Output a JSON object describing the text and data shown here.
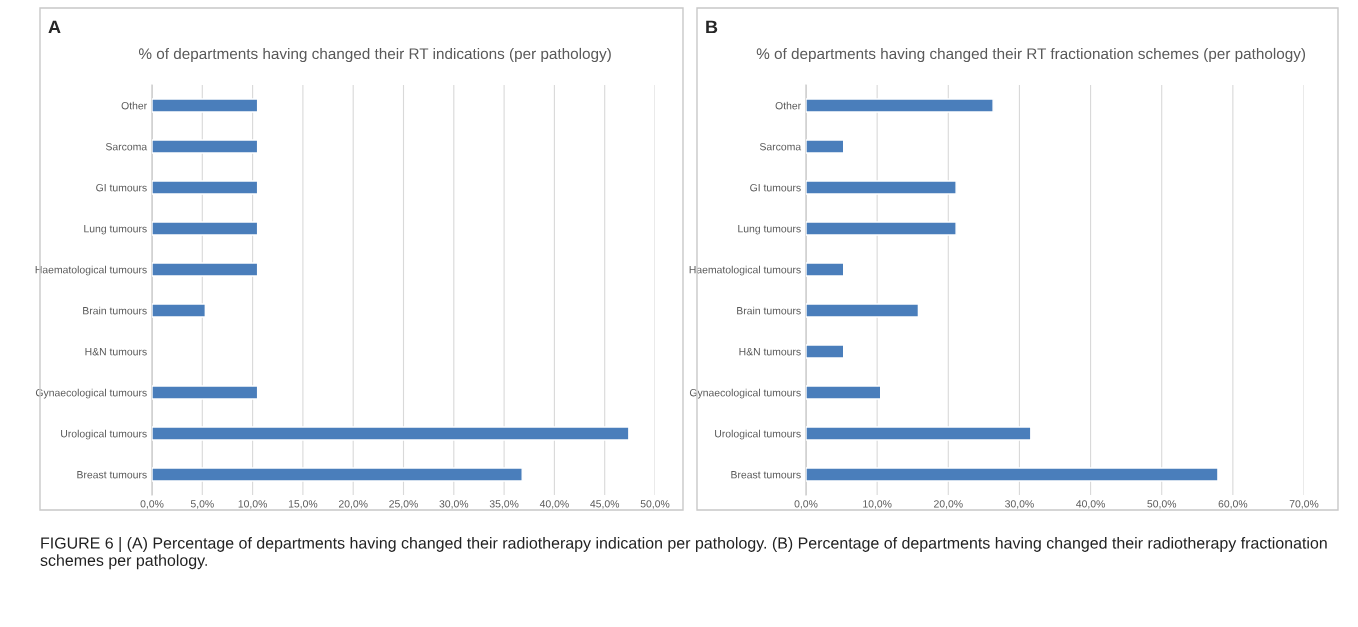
{
  "chart_data": [
    {
      "type": "bar",
      "orientation": "horizontal",
      "title": "% of departments having changed their RT indications (per pathology)",
      "categories": [
        "Other",
        "Sarcoma",
        "GI tumours",
        "Lung tumours",
        "Haematological tumours",
        "Brain tumours",
        "H&N tumours",
        "Gynaecological tumours",
        "Urological tumours",
        "Breast tumours"
      ],
      "values": [
        10.5,
        10.5,
        10.5,
        10.5,
        10.5,
        5.3,
        null,
        10.5,
        47.4,
        36.8
      ],
      "color": "#4a7ebb",
      "xlim": [
        0,
        50
      ],
      "xticks": [
        {
          "value": 0,
          "label": "0,0%"
        },
        {
          "value": 5,
          "label": "5,0%"
        },
        {
          "value": 10,
          "label": "10,0%"
        },
        {
          "value": 15,
          "label": "15,0%"
        },
        {
          "value": 20,
          "label": "20,0%"
        },
        {
          "value": 25,
          "label": "25,0%"
        },
        {
          "value": 30,
          "label": "30,0%"
        },
        {
          "value": 35,
          "label": "35,0%"
        },
        {
          "value": 40,
          "label": "40,0%"
        },
        {
          "value": 45,
          "label": "45,0%"
        },
        {
          "value": 50,
          "label": "50,0%"
        }
      ],
      "grid": "x",
      "annotations": [
        "A"
      ]
    },
    {
      "type": "bar",
      "orientation": "horizontal",
      "title": "% of departments having changed their RT fractionation schemes (per pathology)",
      "categories": [
        "Other",
        "Sarcoma",
        "GI tumours",
        "Lung tumours",
        "Haematological tumours",
        "Brain tumours",
        "H&N tumours",
        "Gynaecological tumours",
        "Urological tumours",
        "Breast tumours"
      ],
      "values": [
        26.3,
        5.3,
        21.1,
        21.1,
        5.3,
        15.8,
        5.3,
        10.5,
        31.6,
        57.9
      ],
      "color": "#4a7ebb",
      "xlim": [
        0,
        70
      ],
      "xticks": [
        {
          "value": 0,
          "label": "0,0%"
        },
        {
          "value": 10,
          "label": "10,0%"
        },
        {
          "value": 20,
          "label": "20,0%"
        },
        {
          "value": 30,
          "label": "30,0%"
        },
        {
          "value": 40,
          "label": "40,0%"
        },
        {
          "value": 50,
          "label": "50,0%"
        },
        {
          "value": 60,
          "label": "60,0%"
        },
        {
          "value": 70,
          "label": "70,0%"
        }
      ],
      "grid": "x",
      "annotations": [
        "B",
        "FIGURE 6 | (A) Percentage of departments having changed their radiotherapy indication per pathology. (B) Percentage of departments having changed their radiotherapy fractionation schemes per pathology."
      ]
    }
  ]
}
